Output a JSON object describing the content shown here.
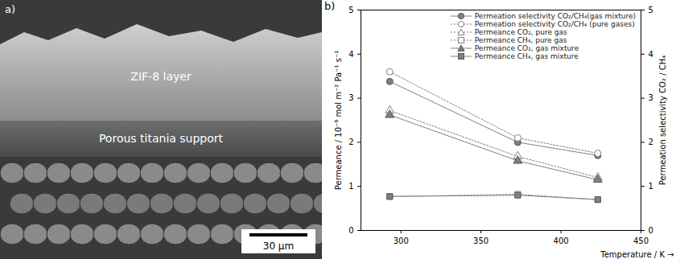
{
  "image_panel": {
    "panel_label": "a)",
    "annotations": [
      "ZIF-8 layer",
      "Porous titania support"
    ],
    "scale_bar": "30 µm"
  },
  "chart_data": {
    "type": "line",
    "title": "b)",
    "x_label": "Temperature / K",
    "y_label": "Permeance / 10⁻⁸ mol m⁻² Pa⁻¹ s⁻¹",
    "y2_label": "Permeation selectivity CO₂ / CH₄",
    "x": [
      293,
      373,
      423
    ],
    "xlim": [
      275,
      450
    ],
    "xticks": [
      300,
      350,
      400,
      450
    ],
    "ylim": [
      0,
      5
    ],
    "yticks": [
      0,
      1,
      2,
      3,
      4,
      5
    ],
    "y2lim": [
      0,
      5
    ],
    "y2ticks": [
      0,
      1,
      2,
      3,
      4,
      5
    ],
    "legend": "top-right",
    "series": [
      {
        "name": "Permeation selectivity CO₂/CH₄(gas mixture)",
        "color": "#808080",
        "marker": "circle",
        "line_style": "solid",
        "axis": "y2",
        "values": [
          3.38,
          2.0,
          1.7
        ]
      },
      {
        "name": "Permeation selectivity CO₂/CH₄ (pure gases)",
        "color": "#808080",
        "marker": "circle-open",
        "line_style": "dotted",
        "axis": "y2",
        "values": [
          3.6,
          2.1,
          1.75
        ]
      },
      {
        "name": "Permeance CO₂, pure gas",
        "color": "#808080",
        "marker": "triangle-open",
        "line_style": "dotted",
        "values": [
          2.72,
          1.68,
          1.2
        ]
      },
      {
        "name": "Permeance CH₄, pure gas",
        "color": "#808080",
        "marker": "square-open",
        "line_style": "dotted",
        "values": [
          0.77,
          0.82,
          0.7
        ]
      },
      {
        "name": "Permeance CO₂, gas mixture",
        "color": "#808080",
        "marker": "triangle",
        "line_style": "solid",
        "values": [
          2.62,
          1.58,
          1.15
        ]
      },
      {
        "name": "Permeance CH₄, gas mixture",
        "color": "#808080",
        "marker": "square",
        "line_style": "solid",
        "values": [
          0.77,
          0.8,
          0.7
        ]
      }
    ]
  }
}
